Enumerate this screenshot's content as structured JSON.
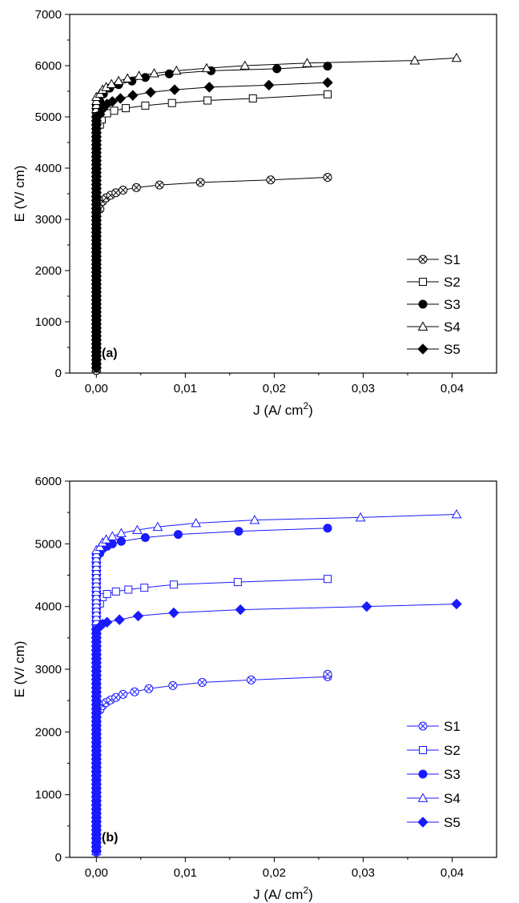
{
  "chart_data": [
    {
      "type": "line",
      "panel_label": "(a)",
      "color": "#000000",
      "xlabel": "J (A/ cm",
      "xlabel_sup": "2",
      "xlabel_close": ")",
      "ylabel": "E (V/ cm)",
      "xlim": [
        -0.003,
        0.045
      ],
      "ylim": [
        0,
        7000
      ],
      "xticks": [
        "0,00",
        "0,01",
        "0,02",
        "0,03",
        "0,04"
      ],
      "xtick_values": [
        0,
        0.01,
        0.02,
        0.03,
        0.04
      ],
      "yticks": [
        "0",
        "1000",
        "2000",
        "3000",
        "4000",
        "5000",
        "6000",
        "7000"
      ],
      "ytick_values": [
        0,
        1000,
        2000,
        3000,
        4000,
        5000,
        6000,
        7000
      ],
      "grid": false,
      "legend_position": "lower-right",
      "series": [
        {
          "name": "S1",
          "marker": "crossed-circle",
          "x": [
            0,
            5e-05,
            0.0001,
            0.0002,
            0.0004,
            0.0007,
            0.0011,
            0.0016,
            0.0022,
            0.003,
            0.0045,
            0.0071,
            0.0117,
            0.0196,
            0.026
          ],
          "y": [
            50,
            1000,
            2000,
            2800,
            3200,
            3350,
            3420,
            3470,
            3520,
            3570,
            3620,
            3670,
            3720,
            3770,
            3820
          ]
        },
        {
          "name": "S2",
          "marker": "open-square",
          "x": [
            0,
            5e-05,
            0.0001,
            0.0002,
            0.0004,
            0.0006,
            0.0012,
            0.002,
            0.0033,
            0.0055,
            0.0085,
            0.0125,
            0.0176,
            0.026
          ],
          "y": [
            100,
            2000,
            3500,
            4500,
            4850,
            4950,
            5070,
            5120,
            5170,
            5220,
            5270,
            5320,
            5360,
            5440
          ]
        },
        {
          "name": "S3",
          "marker": "filled-circle",
          "x": [
            0,
            5e-05,
            0.0001,
            0.0002,
            0.0004,
            0.0008,
            0.0015,
            0.0025,
            0.004,
            0.0055,
            0.0082,
            0.0129,
            0.0203,
            0.026
          ],
          "y": [
            100,
            2500,
            4000,
            5000,
            5300,
            5450,
            5560,
            5630,
            5700,
            5770,
            5840,
            5900,
            5940,
            5990
          ]
        },
        {
          "name": "S4",
          "marker": "open-triangle",
          "x": [
            0,
            5e-05,
            0.0001,
            0.0002,
            0.0004,
            0.0007,
            0.0011,
            0.0017,
            0.0025,
            0.0035,
            0.0048,
            0.0065,
            0.009,
            0.0124,
            0.0167,
            0.0237,
            0.0358,
            0.0405
          ],
          "y": [
            100,
            2500,
            4200,
            5200,
            5450,
            5530,
            5580,
            5640,
            5700,
            5750,
            5800,
            5850,
            5900,
            5950,
            6000,
            6050,
            6100,
            6150
          ]
        },
        {
          "name": "S5",
          "marker": "filled-diamond",
          "x": [
            0,
            5e-05,
            0.0001,
            0.0002,
            0.0004,
            0.0007,
            0.0012,
            0.0018,
            0.0027,
            0.0041,
            0.0061,
            0.0088,
            0.0127,
            0.0194,
            0.026
          ],
          "y": [
            100,
            2000,
            3800,
            4800,
            5050,
            5150,
            5250,
            5300,
            5360,
            5420,
            5480,
            5530,
            5580,
            5620,
            5670
          ]
        }
      ]
    },
    {
      "type": "line",
      "panel_label": "(b)",
      "color": "#1a1aff",
      "xlabel": "J (A/ cm",
      "xlabel_sup": "2",
      "xlabel_close": ")",
      "ylabel": "E (V/ cm)",
      "xlim": [
        -0.003,
        0.045
      ],
      "ylim": [
        0,
        6000
      ],
      "xticks": [
        "0,00",
        "0,01",
        "0,02",
        "0,03",
        "0,04"
      ],
      "xtick_values": [
        0,
        0.01,
        0.02,
        0.03,
        0.04
      ],
      "yticks": [
        "0",
        "1000",
        "2000",
        "3000",
        "4000",
        "5000",
        "6000"
      ],
      "ytick_values": [
        0,
        1000,
        2000,
        3000,
        4000,
        5000,
        6000
      ],
      "grid": false,
      "legend_position": "lower-right",
      "series": [
        {
          "name": "S1",
          "marker": "crossed-circle",
          "x": [
            0,
            5e-05,
            0.0001,
            0.0002,
            0.0004,
            0.0007,
            0.0011,
            0.0016,
            0.0022,
            0.003,
            0.0043,
            0.0059,
            0.0086,
            0.0119,
            0.0174,
            0.026,
            0.026
          ],
          "y": [
            80,
            1000,
            1800,
            2200,
            2350,
            2420,
            2470,
            2510,
            2550,
            2600,
            2640,
            2690,
            2740,
            2790,
            2830,
            2880,
            2920
          ]
        },
        {
          "name": "S2",
          "marker": "open-square",
          "x": [
            0,
            5e-05,
            0.0001,
            0.0002,
            0.0004,
            0.0007,
            0.0012,
            0.0022,
            0.0036,
            0.0054,
            0.0087,
            0.0159,
            0.026
          ],
          "y": [
            100,
            1500,
            3000,
            3800,
            4050,
            4150,
            4200,
            4240,
            4270,
            4300,
            4350,
            4390,
            4440
          ]
        },
        {
          "name": "S3",
          "marker": "filled-circle",
          "x": [
            0,
            5e-05,
            0.0001,
            0.0002,
            0.0004,
            0.0007,
            0.0012,
            0.0018,
            0.0028,
            0.0055,
            0.0092,
            0.016,
            0.026
          ],
          "y": [
            100,
            2000,
            4000,
            4700,
            4850,
            4920,
            4960,
            5000,
            5040,
            5100,
            5150,
            5200,
            5250
          ]
        },
        {
          "name": "S4",
          "marker": "open-triangle",
          "x": [
            0,
            5e-05,
            0.0001,
            0.0002,
            0.0004,
            0.0007,
            0.0011,
            0.0018,
            0.0028,
            0.0046,
            0.0069,
            0.0112,
            0.0178,
            0.0297,
            0.0405
          ],
          "y": [
            100,
            2500,
            4200,
            4800,
            4950,
            5020,
            5070,
            5120,
            5170,
            5220,
            5270,
            5330,
            5380,
            5420,
            5470
          ]
        },
        {
          "name": "S5",
          "marker": "filled-diamond",
          "x": [
            0,
            5e-05,
            0.0001,
            0.0002,
            0.0004,
            0.0007,
            0.0012,
            0.0026,
            0.0047,
            0.0087,
            0.0162,
            0.0304,
            0.0405
          ],
          "y": [
            100,
            1500,
            3200,
            3600,
            3680,
            3720,
            3750,
            3790,
            3850,
            3900,
            3950,
            4000,
            4040
          ]
        }
      ]
    }
  ]
}
